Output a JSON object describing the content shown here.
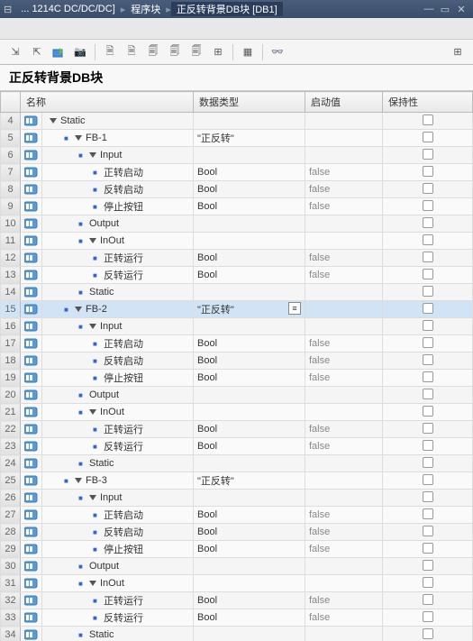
{
  "titlebar": {
    "crumbs": [
      "... 1214C DC/DC/DC]",
      "程序块",
      "正反转背景DB块 [DB1]"
    ]
  },
  "block_title": "正反转背景DB块",
  "columns": {
    "name": "名称",
    "dtype": "数据类型",
    "start": "启动值",
    "retain": "保持性"
  },
  "rows": [
    {
      "n": 4,
      "icon": 1,
      "indent": 0,
      "tri": 1,
      "bullet": 0,
      "name": "Static",
      "dtype": "",
      "start": "",
      "sel": 0
    },
    {
      "n": 5,
      "icon": 1,
      "indent": 1,
      "tri": 1,
      "bullet": 1,
      "name": "FB-1",
      "dtype": "\"正反转\"",
      "start": "",
      "sel": 0
    },
    {
      "n": 6,
      "icon": 1,
      "indent": 2,
      "tri": 1,
      "bullet": 1,
      "name": "Input",
      "dtype": "",
      "start": "",
      "sel": 0
    },
    {
      "n": 7,
      "icon": 1,
      "indent": 3,
      "tri": 0,
      "bullet": 1,
      "name": "正转启动",
      "dtype": "Bool",
      "start": "false",
      "sel": 0
    },
    {
      "n": 8,
      "icon": 1,
      "indent": 3,
      "tri": 0,
      "bullet": 1,
      "name": "反转启动",
      "dtype": "Bool",
      "start": "false",
      "sel": 0
    },
    {
      "n": 9,
      "icon": 1,
      "indent": 3,
      "tri": 0,
      "bullet": 1,
      "name": "停止按钮",
      "dtype": "Bool",
      "start": "false",
      "sel": 0
    },
    {
      "n": 10,
      "icon": 1,
      "indent": 2,
      "tri": 0,
      "bullet": 1,
      "name": "Output",
      "dtype": "",
      "start": "",
      "sel": 0
    },
    {
      "n": 11,
      "icon": 1,
      "indent": 2,
      "tri": 1,
      "bullet": 1,
      "name": "InOut",
      "dtype": "",
      "start": "",
      "sel": 0
    },
    {
      "n": 12,
      "icon": 1,
      "indent": 3,
      "tri": 0,
      "bullet": 1,
      "name": "正转运行",
      "dtype": "Bool",
      "start": "false",
      "sel": 0
    },
    {
      "n": 13,
      "icon": 1,
      "indent": 3,
      "tri": 0,
      "bullet": 1,
      "name": "反转运行",
      "dtype": "Bool",
      "start": "false",
      "sel": 0
    },
    {
      "n": 14,
      "icon": 1,
      "indent": 2,
      "tri": 0,
      "bullet": 1,
      "name": "Static",
      "dtype": "",
      "start": "",
      "sel": 0
    },
    {
      "n": 15,
      "icon": 1,
      "indent": 1,
      "tri": 1,
      "bullet": 1,
      "name": "FB-2",
      "dtype": "\"正反转\"",
      "start": "",
      "sel": 1
    },
    {
      "n": 16,
      "icon": 1,
      "indent": 2,
      "tri": 1,
      "bullet": 1,
      "name": "Input",
      "dtype": "",
      "start": "",
      "sel": 0
    },
    {
      "n": 17,
      "icon": 1,
      "indent": 3,
      "tri": 0,
      "bullet": 1,
      "name": "正转启动",
      "dtype": "Bool",
      "start": "false",
      "sel": 0
    },
    {
      "n": 18,
      "icon": 1,
      "indent": 3,
      "tri": 0,
      "bullet": 1,
      "name": "反转启动",
      "dtype": "Bool",
      "start": "false",
      "sel": 0
    },
    {
      "n": 19,
      "icon": 1,
      "indent": 3,
      "tri": 0,
      "bullet": 1,
      "name": "停止按钮",
      "dtype": "Bool",
      "start": "false",
      "sel": 0
    },
    {
      "n": 20,
      "icon": 1,
      "indent": 2,
      "tri": 0,
      "bullet": 1,
      "name": "Output",
      "dtype": "",
      "start": "",
      "sel": 0
    },
    {
      "n": 21,
      "icon": 1,
      "indent": 2,
      "tri": 1,
      "bullet": 1,
      "name": "InOut",
      "dtype": "",
      "start": "",
      "sel": 0
    },
    {
      "n": 22,
      "icon": 1,
      "indent": 3,
      "tri": 0,
      "bullet": 1,
      "name": "正转运行",
      "dtype": "Bool",
      "start": "false",
      "sel": 0
    },
    {
      "n": 23,
      "icon": 1,
      "indent": 3,
      "tri": 0,
      "bullet": 1,
      "name": "反转运行",
      "dtype": "Bool",
      "start": "false",
      "sel": 0
    },
    {
      "n": 24,
      "icon": 1,
      "indent": 2,
      "tri": 0,
      "bullet": 1,
      "name": "Static",
      "dtype": "",
      "start": "",
      "sel": 0
    },
    {
      "n": 25,
      "icon": 1,
      "indent": 1,
      "tri": 1,
      "bullet": 1,
      "name": "FB-3",
      "dtype": "\"正反转\"",
      "start": "",
      "sel": 0
    },
    {
      "n": 26,
      "icon": 1,
      "indent": 2,
      "tri": 1,
      "bullet": 1,
      "name": "Input",
      "dtype": "",
      "start": "",
      "sel": 0
    },
    {
      "n": 27,
      "icon": 1,
      "indent": 3,
      "tri": 0,
      "bullet": 1,
      "name": "正转启动",
      "dtype": "Bool",
      "start": "false",
      "sel": 0
    },
    {
      "n": 28,
      "icon": 1,
      "indent": 3,
      "tri": 0,
      "bullet": 1,
      "name": "反转启动",
      "dtype": "Bool",
      "start": "false",
      "sel": 0
    },
    {
      "n": 29,
      "icon": 1,
      "indent": 3,
      "tri": 0,
      "bullet": 1,
      "name": "停止按钮",
      "dtype": "Bool",
      "start": "false",
      "sel": 0
    },
    {
      "n": 30,
      "icon": 1,
      "indent": 2,
      "tri": 0,
      "bullet": 1,
      "name": "Output",
      "dtype": "",
      "start": "",
      "sel": 0
    },
    {
      "n": 31,
      "icon": 1,
      "indent": 2,
      "tri": 1,
      "bullet": 1,
      "name": "InOut",
      "dtype": "",
      "start": "",
      "sel": 0
    },
    {
      "n": 32,
      "icon": 1,
      "indent": 3,
      "tri": 0,
      "bullet": 1,
      "name": "正转运行",
      "dtype": "Bool",
      "start": "false",
      "sel": 0
    },
    {
      "n": 33,
      "icon": 1,
      "indent": 3,
      "tri": 0,
      "bullet": 1,
      "name": "反转运行",
      "dtype": "Bool",
      "start": "false",
      "sel": 0
    },
    {
      "n": 34,
      "icon": 1,
      "indent": 2,
      "tri": 0,
      "bullet": 1,
      "name": "Static",
      "dtype": "",
      "start": "",
      "sel": 0
    }
  ],
  "col_widths": {
    "rownum": 22,
    "icon": 24,
    "name": 168,
    "dtype": 124,
    "start": 86,
    "retain": 100
  },
  "colors": {
    "title_bg1": "#4a5d7a",
    "title_bg2": "#3a4d6a",
    "sel_bg": "#d0e4f5",
    "bullet": "#3366cc"
  }
}
